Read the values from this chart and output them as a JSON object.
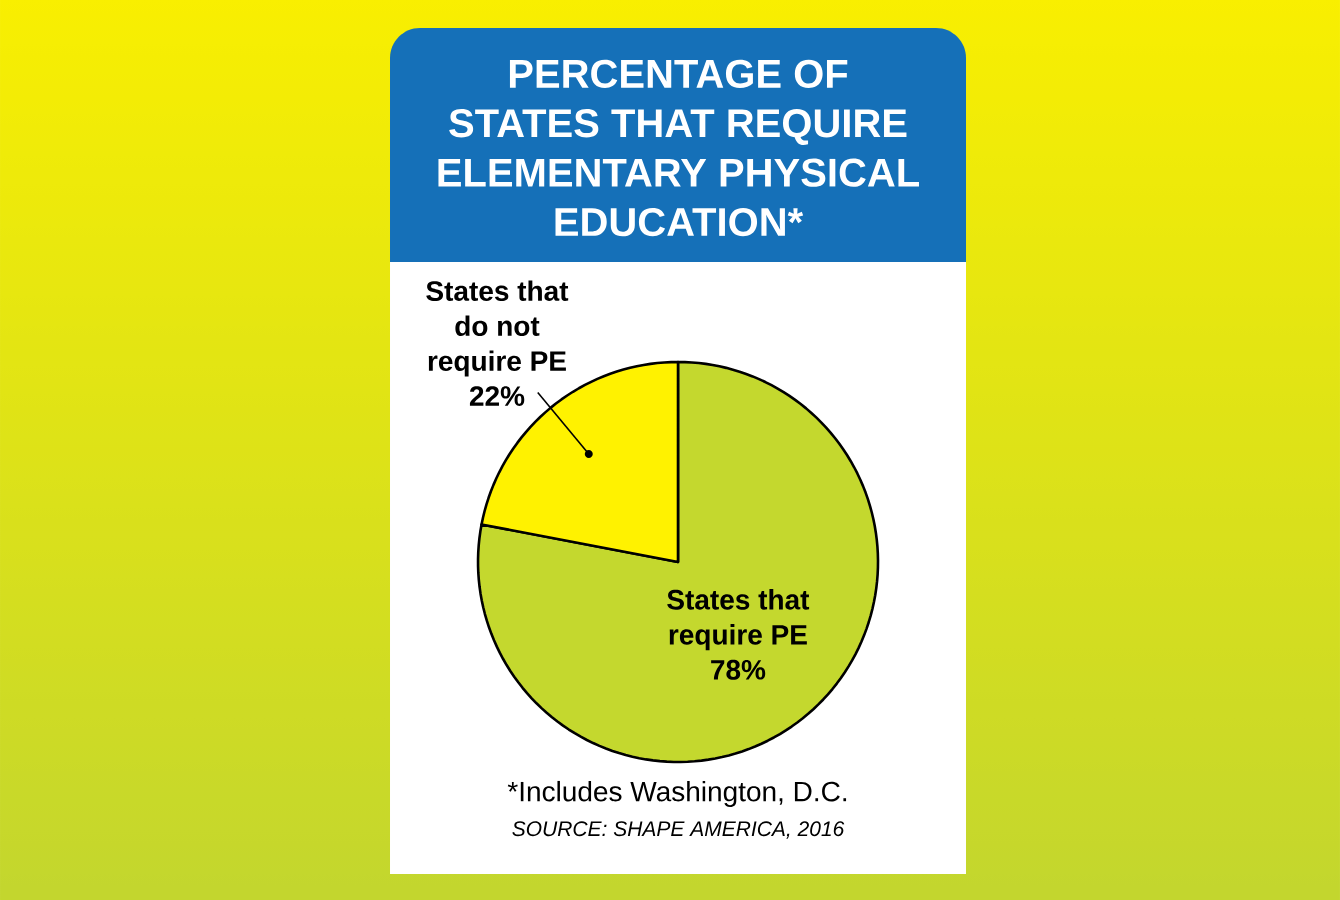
{
  "chart_data": {
    "type": "pie",
    "title": "PERCENTAGE OF STATES THAT REQUIRE ELEMENTARY PHYSICAL EDUCATION*",
    "categories": [
      "States that require PE",
      "States that do not require PE"
    ],
    "values": [
      78,
      22
    ],
    "colors": [
      "#c4d82e",
      "#fff200"
    ],
    "value_labels": [
      "78%",
      "22%"
    ],
    "annotations": [
      "*Includes Washington, D.C.",
      "SOURCE: SHAPE AMERICA, 2016"
    ]
  }
}
